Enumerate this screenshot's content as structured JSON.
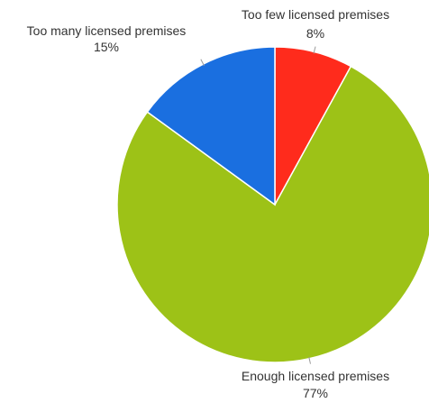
{
  "chart_data": {
    "type": "pie",
    "title": "",
    "slices": [
      {
        "label": "Too few licensed premises",
        "value": 8,
        "value_label": "8%",
        "color": "#ff2b1c"
      },
      {
        "label": "Enough licensed premises",
        "value": 77,
        "value_label": "77%",
        "color": "#9dc217"
      },
      {
        "label": "Too many licensed premises",
        "value": 15,
        "value_label": "15%",
        "color": "#1a6fe0"
      }
    ],
    "legend": "none",
    "start_angle": "top, clockwise"
  }
}
